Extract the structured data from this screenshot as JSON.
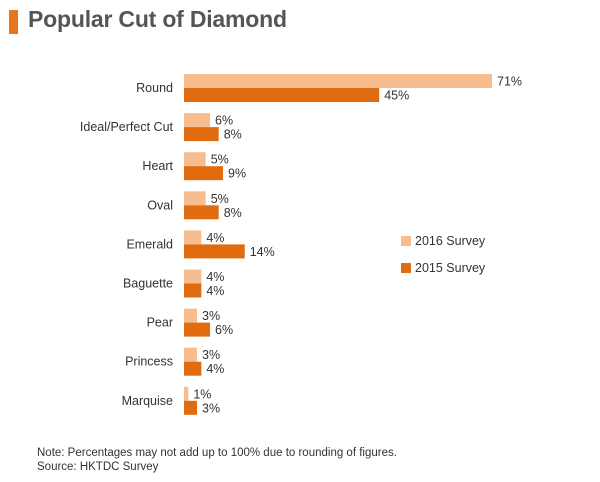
{
  "header": {
    "title": "Popular Cut of Diamond"
  },
  "footer": {
    "note": "Note: Percentages may not add up to 100% due to rounding of figures.",
    "source": "Source: HKTDC Survey"
  },
  "colors": {
    "accent": "#e8741d",
    "series_2016": "#f7bd8f",
    "series_2015": "#e06c0f",
    "text": "#333333"
  },
  "chart_data": {
    "type": "bar",
    "orientation": "horizontal",
    "title": "Popular Cut of Diamond",
    "categories": [
      "Round",
      "Ideal/Perfect Cut",
      "Heart",
      "Oval",
      "Emerald",
      "Baguette",
      "Pear",
      "Princess",
      "Marquise"
    ],
    "series": [
      {
        "name": "2016 Survey",
        "values": [
          71,
          6,
          5,
          5,
          4,
          4,
          3,
          3,
          1
        ],
        "labels": [
          "71%",
          "6%",
          "5%",
          "5%",
          "4%",
          "4%",
          "3%",
          "3%",
          "1%"
        ]
      },
      {
        "name": "2015 Survey",
        "values": [
          45,
          8,
          9,
          8,
          14,
          4,
          6,
          4,
          3
        ],
        "labels": [
          "45%",
          "8%",
          "9%",
          "8%",
          "14%",
          "4%",
          "6%",
          "4%",
          "3%"
        ]
      }
    ],
    "xlim": [
      0,
      71
    ],
    "grid": false,
    "legend_position": "right"
  }
}
